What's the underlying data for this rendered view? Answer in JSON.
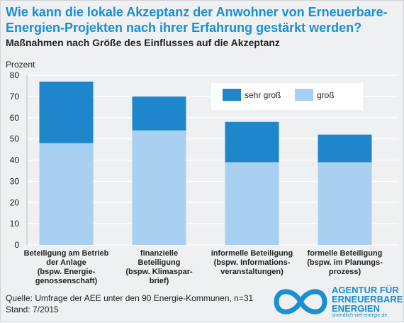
{
  "header": {
    "title": "Wie kann die lokale Akzeptanz der Anwohner von Erneuerbare-Energien-Projekten nach ihrer Erfahrung gestärkt werden?",
    "subtitle": "Maßnahmen nach Größe des Einflusses auf die Akzeptanz"
  },
  "chart_data": {
    "type": "bar",
    "stacked": true,
    "ylabel": "Prozent",
    "ylim": [
      0,
      80
    ],
    "yticks": [
      0,
      10,
      20,
      30,
      40,
      50,
      60,
      70,
      80
    ],
    "grid": true,
    "legend_position": "top-right",
    "categories": [
      [
        "Beteiligung am Betrieb",
        "der Anlage",
        "(bspw. Energie-",
        "genossenschaft)"
      ],
      [
        "finanzielle",
        "Beteiligung",
        "(bspw. Klimaspar-",
        "brief)"
      ],
      [
        "informelle Beteiligung",
        "(bspw. Informations-",
        "veranstaltungen)"
      ],
      [
        "formelle Beteiligung",
        "(bspw. im Planungs-",
        "prozess)"
      ]
    ],
    "series": [
      {
        "name": "groß",
        "color": "#a9d0f0",
        "values": [
          48,
          54,
          39,
          39
        ]
      },
      {
        "name": "sehr groß",
        "color": "#1f86cc",
        "values": [
          29,
          16,
          19,
          13
        ]
      }
    ],
    "legend": [
      {
        "name": "sehr groß",
        "color": "#1f86cc"
      },
      {
        "name": "groß",
        "color": "#a9d0f0"
      }
    ]
  },
  "footer": {
    "source": "Quelle: Umfrage der AEE unter den 90 Energie-Kommunen, n=31",
    "date": "Stand: 7/2015"
  },
  "logo": {
    "lines": [
      "AGENTUR FÜR",
      "ERNEUERBARE",
      "ENERGIEN"
    ],
    "url": "unendlich-viel-energie.de",
    "icon": "infinity-logo-icon",
    "color": "#1a8fd1"
  }
}
